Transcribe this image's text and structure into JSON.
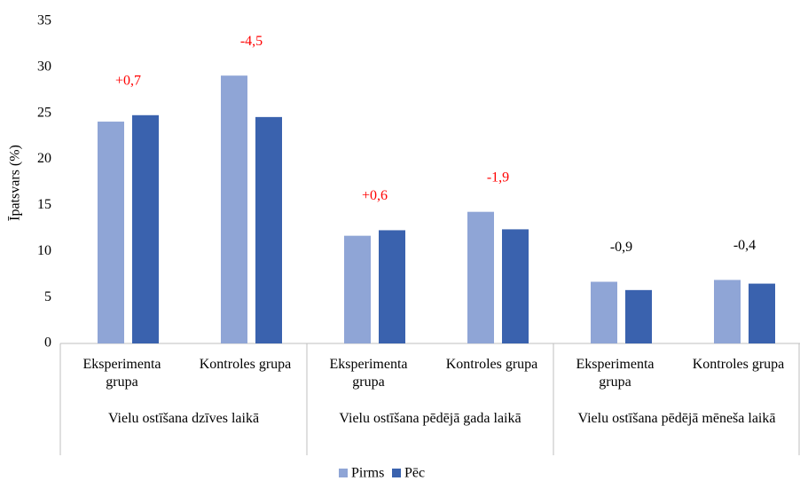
{
  "chart_data": {
    "type": "bar",
    "y_label": "Īpatsvars (%)",
    "groups": [
      "Vielu ostīšana dzīves laikā",
      "Vielu ostīšana pēdējā gada laikā",
      "Vielu ostīšana pēdējā mēneša laikā"
    ],
    "categories": [
      "Eksperimenta grupa",
      "Kontroles grupa",
      "Eksperimenta grupa",
      "Kontroles grupa",
      "Eksperimenta grupa",
      "Kontroles grupa"
    ],
    "series": [
      {
        "name": "Pirms",
        "color": "#8fa5d6",
        "values": [
          24.1,
          29.1,
          11.7,
          14.3,
          6.7,
          6.9
        ]
      },
      {
        "name": "Pēc",
        "color": "#3a62ae",
        "values": [
          24.8,
          24.6,
          12.3,
          12.4,
          5.8,
          6.5
        ]
      }
    ],
    "annotations": [
      {
        "text": "+0,7",
        "color": "#ff0000"
      },
      {
        "text": "-4,5",
        "color": "#ff0000"
      },
      {
        "text": "+0,6",
        "color": "#ff0000"
      },
      {
        "text": "-1,9",
        "color": "#ff0000"
      },
      {
        "text": "-0,9",
        "color": "#000000"
      },
      {
        "text": "-0,4",
        "color": "#000000"
      }
    ],
    "ylim": [
      0,
      35
    ],
    "yticks": [
      0,
      5,
      10,
      15,
      20,
      25,
      30,
      35
    ],
    "grid": false
  }
}
